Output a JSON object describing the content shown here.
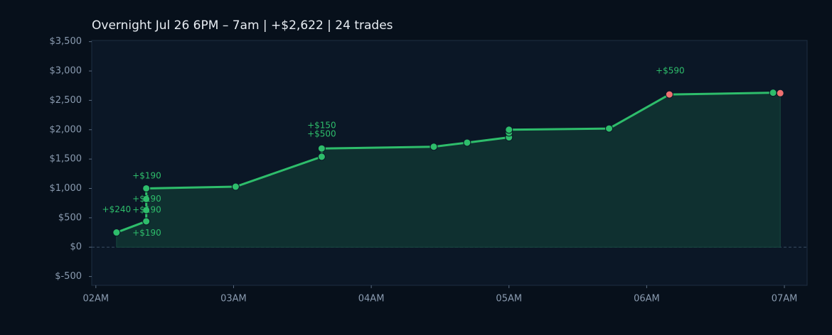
{
  "chart_data": {
    "type": "line",
    "title": "Overnight  Jul 26 6PM – 7am  |  +$2,622  |  24 trades",
    "x": [
      2.15,
      2.366,
      2.366,
      2.366,
      2.366,
      3.015,
      3.64,
      3.64,
      4.454,
      4.696,
      5.0,
      5.0,
      5.0,
      5.727,
      6.165,
      6.918,
      6.97
    ],
    "series": [
      {
        "color": "#2ebd6b",
        "values": [
          250,
          440,
          630,
          820,
          1000,
          1030,
          1540,
          1680,
          1710,
          1780,
          1870,
          1950,
          2000,
          2020,
          2600,
          2630,
          2622
        ],
        "point_colors": [
          "#2ebd6b",
          "#2ebd6b",
          "#2ebd6b",
          "#2ebd6b",
          "#2ebd6b",
          "#2ebd6b",
          "#2ebd6b",
          "#2ebd6b",
          "#2ebd6b",
          "#2ebd6b",
          "#2ebd6b",
          "#2ebd6b",
          "#2ebd6b",
          "#2ebd6b",
          "#f07070",
          "#2ebd6b",
          "#f07070"
        ]
      }
    ],
    "xlim": [
      1.97,
      7.165
    ],
    "xticks": [
      {
        "value": 2,
        "label": "02AM"
      },
      {
        "value": 3,
        "label": "03AM"
      },
      {
        "value": 4,
        "label": "04AM"
      },
      {
        "value": 5,
        "label": "05AM"
      },
      {
        "value": 6,
        "label": "06AM"
      },
      {
        "value": 7,
        "label": "07AM"
      }
    ],
    "ylim": [
      -650,
      3520
    ],
    "yticks": [
      {
        "value": -500,
        "label": "$-500"
      },
      {
        "value": 0,
        "label": "$0"
      },
      {
        "value": 500,
        "label": "$500"
      },
      {
        "value": 1000,
        "label": "$1,000"
      },
      {
        "value": 1500,
        "label": "$1,500"
      },
      {
        "value": 2000,
        "label": "$2,000"
      },
      {
        "value": 2500,
        "label": "$2,500"
      },
      {
        "value": 3000,
        "label": "$3,000"
      },
      {
        "value": 3500,
        "label": "$3,500"
      }
    ],
    "annotations": [
      {
        "text": "+$240",
        "x": 2.15,
        "y": 640
      },
      {
        "text": "+$190",
        "x": 2.37,
        "y": 1210
      },
      {
        "text": "+$190",
        "x": 2.37,
        "y": 820
      },
      {
        "text": "+$190",
        "x": 2.37,
        "y": 630
      },
      {
        "text": "+$190",
        "x": 2.37,
        "y": 240
      },
      {
        "text": "+$150",
        "x": 3.64,
        "y": 2070
      },
      {
        "text": "+$500",
        "x": 3.64,
        "y": 1925
      },
      {
        "text": "+$590",
        "x": 6.17,
        "y": 3000
      }
    ]
  }
}
